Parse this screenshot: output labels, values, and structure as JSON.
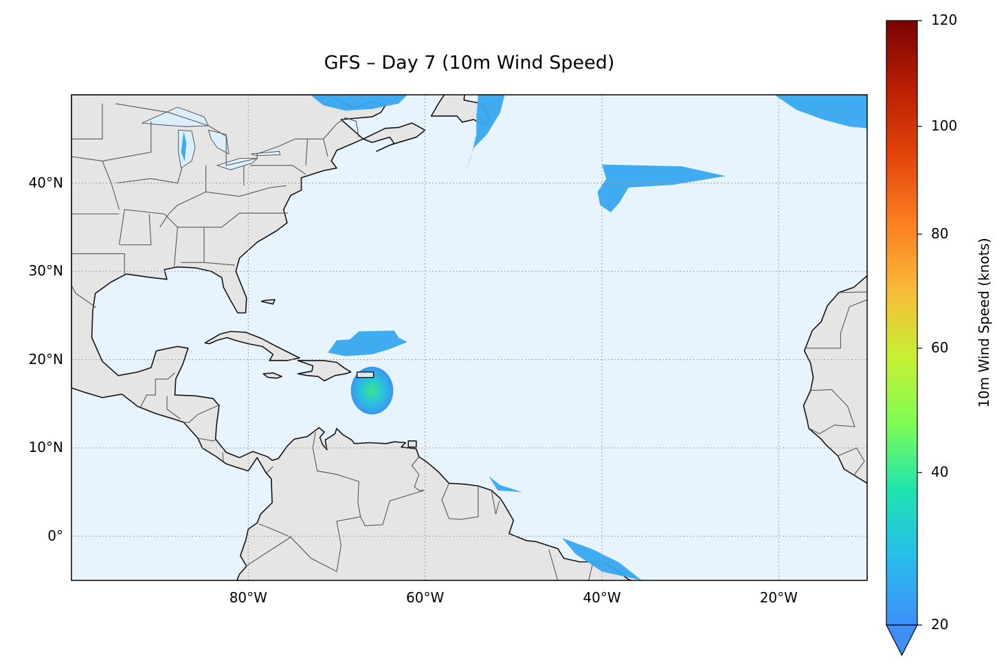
{
  "title": "GFS – Day 7 (10m Wind Speed)",
  "map": {
    "projection": "PlateCarree",
    "extent_lon": [
      -100,
      -10
    ],
    "extent_lat": [
      -5,
      50
    ],
    "ocean_color": "#e8f4fd",
    "land_color": "#e5e5e5",
    "coastline_color": "#111111",
    "border_color": "#555555",
    "gridlines": true,
    "lon_ticks": [
      {
        "value": -80,
        "label": "80°W"
      },
      {
        "value": -60,
        "label": "60°W"
      },
      {
        "value": -40,
        "label": "40°W"
      },
      {
        "value": -20,
        "label": "20°W"
      }
    ],
    "lat_ticks": [
      {
        "value": 40,
        "label": "40°N"
      },
      {
        "value": 30,
        "label": "30°N"
      },
      {
        "value": 20,
        "label": "20°N"
      },
      {
        "value": 10,
        "label": "10°N"
      },
      {
        "value": 0,
        "label": "0°"
      }
    ]
  },
  "colorbar": {
    "label": "10m Wind Speed (knots)",
    "colormap": "turbo",
    "vmin": 20,
    "vmax": 120,
    "extend": "min",
    "ticks": [
      {
        "value": 20,
        "label": "20"
      },
      {
        "value": 40,
        "label": "40"
      },
      {
        "value": 60,
        "label": "60"
      },
      {
        "value": 80,
        "label": "80"
      },
      {
        "value": 100,
        "label": "100"
      },
      {
        "value": 120,
        "label": "120"
      }
    ],
    "colors": [
      "#3e8ff8",
      "#28bceb",
      "#1ee3b0",
      "#7dfc54",
      "#c8ef34",
      "#f9ba38",
      "#fb7e21",
      "#e3440a",
      "#b91e02",
      "#7a0403"
    ]
  }
}
